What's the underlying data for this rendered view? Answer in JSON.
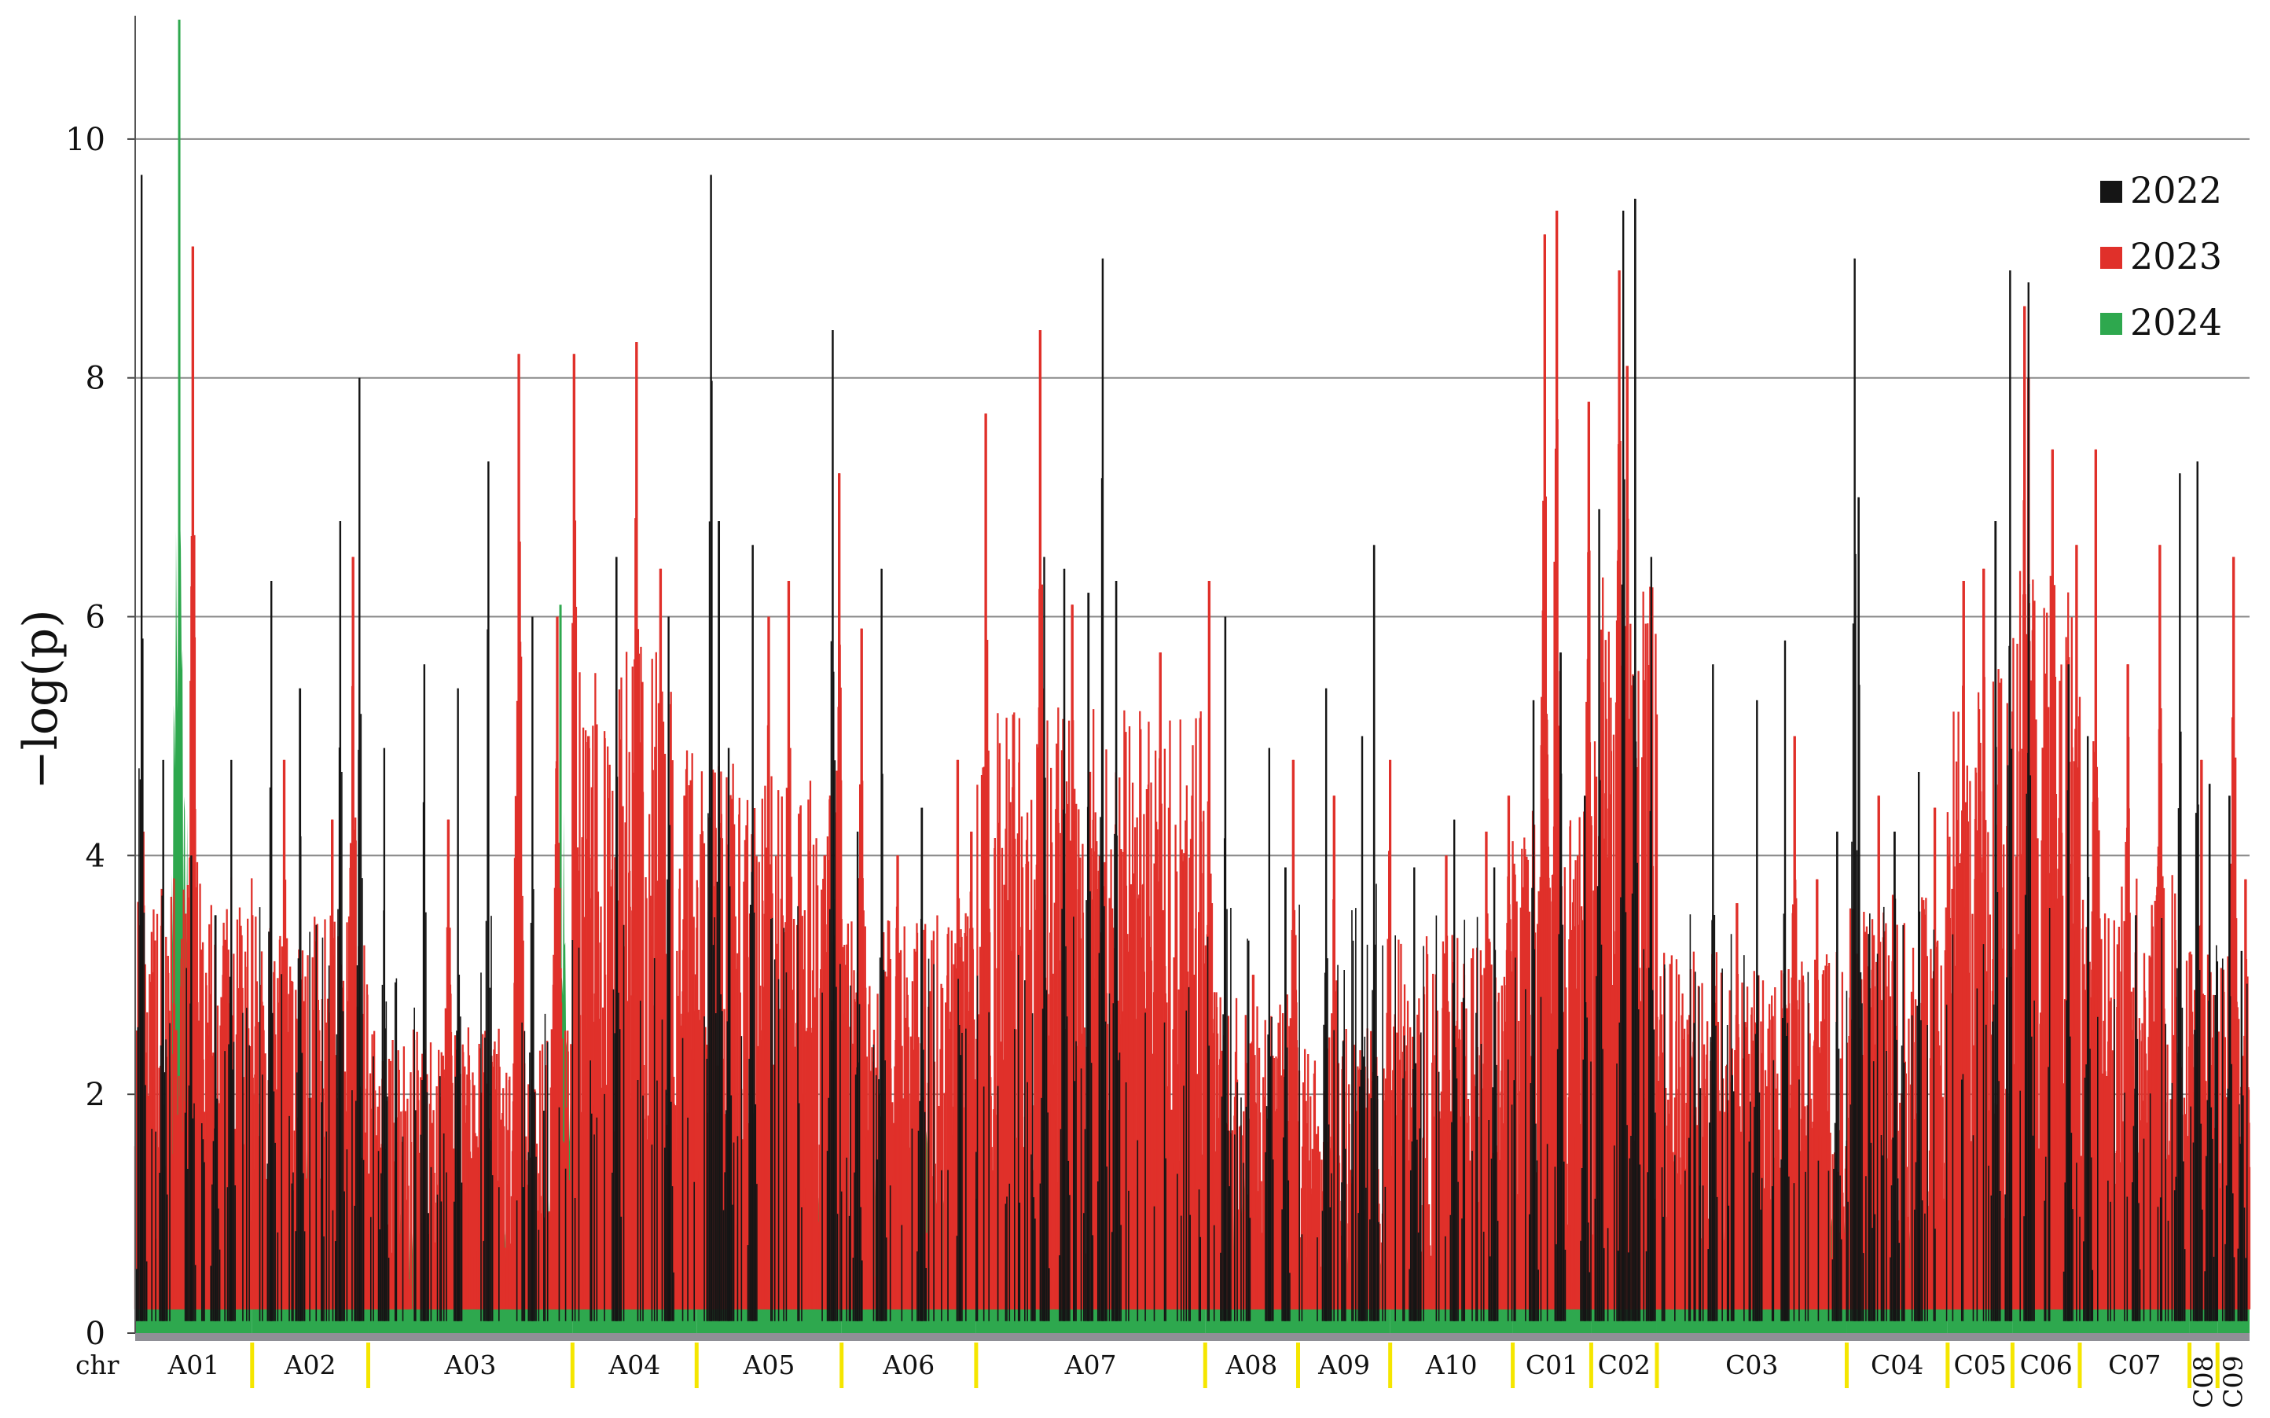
{
  "chart_data": {
    "type": "bar",
    "ylabel": "−log(p)",
    "ylim": [
      0,
      11
    ],
    "yticks": [
      0,
      2,
      4,
      6,
      8,
      10
    ],
    "grid": "horizontal",
    "legend_position": "top-right",
    "x_start_label": "chr",
    "series": [
      {
        "name": "2022",
        "color": "#151515"
      },
      {
        "name": "2023",
        "color": "#e0302a"
      },
      {
        "name": "2024",
        "color": "#2ea84e"
      }
    ],
    "chromosomes": [
      {
        "name": "A01",
        "span": [
          0,
          146
        ],
        "peaks_2022": [
          [
            8,
            9.7
          ],
          [
            35,
            4.8
          ],
          [
            70,
            4.0
          ],
          [
            100,
            3.5
          ],
          [
            120,
            4.8
          ]
        ],
        "peaks_2023": [
          [
            10,
            4.2
          ],
          [
            42,
            2.7
          ],
          [
            72,
            9.1
          ],
          [
            110,
            3.0
          ]
        ],
        "peaks_2024": [
          [
            55,
            11.0
          ],
          [
            90,
            1.9
          ]
        ],
        "floor_2024": 0.4,
        "level_2023": 2.4
      },
      {
        "name": "A02",
        "span": [
          146,
          291
        ],
        "peaks_2022": [
          [
            24,
            6.3
          ],
          [
            60,
            5.4
          ],
          [
            110,
            6.8
          ],
          [
            134,
            8.0
          ]
        ],
        "peaks_2023": [
          [
            40,
            4.8
          ],
          [
            100,
            4.3
          ],
          [
            126,
            6.5
          ]
        ],
        "peaks_2024": [
          [
            70,
            2.0
          ]
        ],
        "floor_2024": 0.5,
        "level_2023": 2.2
      },
      {
        "name": "A03",
        "span": [
          291,
          546
        ],
        "peaks_2022": [
          [
            20,
            4.9
          ],
          [
            70,
            5.6
          ],
          [
            112,
            5.4
          ],
          [
            150,
            7.3
          ],
          [
            205,
            6.0
          ]
        ],
        "peaks_2023": [
          [
            100,
            4.3
          ],
          [
            188,
            8.2
          ],
          [
            236,
            6.0
          ]
        ],
        "peaks_2024": [
          [
            140,
            2.4
          ],
          [
            240,
            6.1
          ]
        ],
        "floor_2024": 0.7,
        "level_2023": 1.6
      },
      {
        "name": "A04",
        "span": [
          546,
          701
        ],
        "peaks_2022": [
          [
            55,
            6.5
          ],
          [
            120,
            6.0
          ]
        ],
        "peaks_2023": [
          [
            2,
            8.2
          ],
          [
            20,
            5.0
          ],
          [
            80,
            8.3
          ],
          [
            110,
            6.4
          ],
          [
            140,
            4.5
          ]
        ],
        "peaks_2024": [
          [
            60,
            3.2
          ]
        ],
        "floor_2024": 0.9,
        "level_2023": 3.6
      },
      {
        "name": "A05",
        "span": [
          701,
          882
        ],
        "peaks_2022": [
          [
            18,
            9.7
          ],
          [
            28,
            6.8
          ],
          [
            40,
            4.9
          ],
          [
            70,
            6.6
          ],
          [
            170,
            8.4
          ]
        ],
        "peaks_2023": [
          [
            90,
            6.0
          ],
          [
            115,
            6.3
          ],
          [
            160,
            4.0
          ],
          [
            178,
            7.2
          ]
        ],
        "peaks_2024": [
          [
            150,
            2.0
          ]
        ],
        "floor_2024": 0.6,
        "level_2023": 3.0
      },
      {
        "name": "A06",
        "span": [
          882,
          1050
        ],
        "peaks_2022": [
          [
            20,
            4.2
          ],
          [
            50,
            6.4
          ],
          [
            100,
            4.4
          ]
        ],
        "peaks_2023": [
          [
            25,
            5.9
          ],
          [
            70,
            4.0
          ],
          [
            145,
            4.8
          ],
          [
            162,
            4.2
          ]
        ],
        "peaks_2024": [
          [
            100,
            3.4
          ],
          [
            80,
            2.7
          ]
        ],
        "floor_2024": 1.0,
        "level_2023": 2.2
      },
      {
        "name": "A07",
        "span": [
          1050,
          1336
        ],
        "peaks_2022": [
          [
            85,
            6.5
          ],
          [
            110,
            6.4
          ],
          [
            140,
            6.2
          ],
          [
            158,
            9.0
          ],
          [
            175,
            6.3
          ]
        ],
        "peaks_2023": [
          [
            12,
            7.7
          ],
          [
            80,
            8.4
          ],
          [
            120,
            6.1
          ],
          [
            230,
            5.7
          ],
          [
            270,
            4.5
          ]
        ],
        "peaks_2024": [
          [
            100,
            1.5
          ]
        ],
        "floor_2024": 0.4,
        "level_2023": 3.3
      },
      {
        "name": "A08",
        "span": [
          1336,
          1452
        ],
        "peaks_2022": [
          [
            25,
            6.0
          ],
          [
            80,
            4.9
          ],
          [
            100,
            3.9
          ]
        ],
        "peaks_2023": [
          [
            5,
            6.3
          ],
          [
            60,
            3.0
          ],
          [
            110,
            4.8
          ]
        ],
        "peaks_2024": [
          [
            50,
            1.8
          ]
        ],
        "floor_2024": 0.7,
        "level_2023": 1.8
      },
      {
        "name": "A09",
        "span": [
          1452,
          1567
        ],
        "peaks_2022": [
          [
            35,
            5.4
          ],
          [
            80,
            5.0
          ],
          [
            95,
            6.6
          ]
        ],
        "peaks_2023": [
          [
            45,
            4.5
          ],
          [
            115,
            4.8
          ]
        ],
        "peaks_2024": [
          [
            60,
            1.1
          ]
        ],
        "floor_2024": 0.5,
        "level_2023": 1.6
      },
      {
        "name": "A10",
        "span": [
          1567,
          1720
        ],
        "peaks_2022": [
          [
            30,
            3.9
          ],
          [
            80,
            4.3
          ],
          [
            130,
            3.9
          ]
        ],
        "peaks_2023": [
          [
            70,
            4.0
          ],
          [
            120,
            4.2
          ],
          [
            148,
            4.5
          ]
        ],
        "peaks_2024": [
          [
            60,
            1.0
          ]
        ],
        "floor_2024": 0.4,
        "level_2023": 2.1
      },
      {
        "name": "C01",
        "span": [
          1720,
          1818
        ],
        "peaks_2022": [
          [
            26,
            5.3
          ],
          [
            60,
            5.7
          ],
          [
            90,
            4.5
          ]
        ],
        "peaks_2023": [
          [
            40,
            9.2
          ],
          [
            55,
            9.4
          ],
          [
            95,
            7.8
          ]
        ],
        "peaks_2024": [
          [
            70,
            1.4
          ]
        ],
        "floor_2024": 0.6,
        "level_2023": 2.8
      },
      {
        "name": "C02",
        "span": [
          1818,
          1900
        ],
        "peaks_2022": [
          [
            10,
            6.9
          ],
          [
            40,
            9.4
          ],
          [
            55,
            9.5
          ],
          [
            75,
            6.5
          ]
        ],
        "peaks_2023": [
          [
            35,
            8.9
          ],
          [
            45,
            8.1
          ]
        ],
        "peaks_2024": [
          [
            60,
            1.3
          ]
        ],
        "floor_2024": 0.5,
        "level_2023": 4.0
      },
      {
        "name": "C03",
        "span": [
          1900,
          2137
        ],
        "peaks_2022": [
          [
            70,
            5.6
          ],
          [
            125,
            5.3
          ],
          [
            160,
            5.8
          ],
          [
            225,
            4.2
          ]
        ],
        "peaks_2023": [
          [
            100,
            3.6
          ],
          [
            172,
            5.0
          ],
          [
            200,
            3.8
          ]
        ],
        "peaks_2024": [
          [
            120,
            1.6
          ]
        ],
        "floor_2024": 0.7,
        "level_2023": 2.0
      },
      {
        "name": "C04",
        "span": [
          2137,
          2263
        ],
        "peaks_2022": [
          [
            10,
            9.0
          ],
          [
            15,
            7.0
          ],
          [
            60,
            4.2
          ],
          [
            90,
            4.7
          ]
        ],
        "peaks_2023": [
          [
            40,
            4.5
          ],
          [
            110,
            4.4
          ]
        ],
        "peaks_2024": [
          [
            80,
            1.5
          ]
        ],
        "floor_2024": 0.5,
        "level_2023": 2.3
      },
      {
        "name": "C05",
        "span": [
          2263,
          2344
        ],
        "peaks_2022": [
          [
            60,
            6.8
          ],
          [
            78,
            8.9
          ]
        ],
        "peaks_2023": [
          [
            20,
            6.3
          ],
          [
            45,
            6.4
          ]
        ],
        "peaks_2024": [
          [
            40,
            2.4
          ]
        ],
        "floor_2024": 0.6,
        "level_2023": 3.5
      },
      {
        "name": "C06",
        "span": [
          2344,
          2428
        ],
        "peaks_2022": [
          [
            20,
            8.8
          ],
          [
            70,
            5.6
          ]
        ],
        "peaks_2023": [
          [
            15,
            8.6
          ],
          [
            20,
            8.0
          ],
          [
            50,
            7.4
          ],
          [
            80,
            6.6
          ]
        ],
        "peaks_2024": [
          [
            50,
            3.0
          ]
        ],
        "floor_2024": 0.9,
        "level_2023": 4.0
      },
      {
        "name": "C07",
        "span": [
          2428,
          2565
        ],
        "peaks_2022": [
          [
            10,
            5.0
          ],
          [
            70,
            3.5
          ],
          [
            125,
            7.2
          ]
        ],
        "peaks_2023": [
          [
            20,
            7.4
          ],
          [
            60,
            5.6
          ],
          [
            100,
            6.6
          ]
        ],
        "peaks_2024": [
          [
            70,
            3.0
          ]
        ],
        "floor_2024": 0.7,
        "level_2023": 2.4
      },
      {
        "name": "C08",
        "span": [
          2565,
          2600
        ],
        "peaks_2022": [
          [
            10,
            7.3
          ],
          [
            25,
            4.6
          ]
        ],
        "peaks_2023": [
          [
            15,
            4.8
          ]
        ],
        "peaks_2024": [
          [
            20,
            1.7
          ]
        ],
        "floor_2024": 0.5,
        "level_2023": 2.0
      },
      {
        "name": "C09",
        "span": [
          2600,
          2640
        ],
        "peaks_2022": [
          [
            15,
            4.5
          ],
          [
            30,
            3.2
          ]
        ],
        "peaks_2023": [
          [
            20,
            6.5
          ],
          [
            35,
            3.8
          ]
        ],
        "peaks_2024": [
          [
            25,
            1.6
          ]
        ],
        "floor_2024": 0.5,
        "level_2023": 2.0
      }
    ]
  }
}
